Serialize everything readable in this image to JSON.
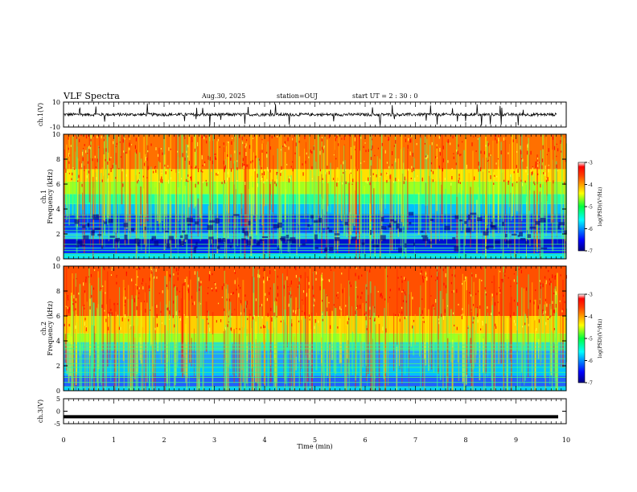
{
  "header": {
    "title": "VLF Spectra",
    "date": "Aug.30, 2025",
    "station": "station=OUJ",
    "start": "start  UT =   2  : 30 : 0"
  },
  "chart_data": [
    {
      "type": "line",
      "panel": "ch1-waveform",
      "ylabel": "ch.1(V)",
      "xlim": [
        0,
        10
      ],
      "ylim": [
        -10,
        10
      ],
      "yticks": [
        "10",
        "-10"
      ],
      "trace_color": "#000000",
      "baseline": 0,
      "noise_amplitude": 1.2,
      "spike_amplitude": 9
    },
    {
      "type": "heatmap",
      "panel": "ch1-spectrogram",
      "ylabel_channel": "ch.1",
      "ylabel": "Frequency (kHz)",
      "xlim": [
        0,
        10
      ],
      "ylim": [
        0,
        10
      ],
      "yticks": [
        "0",
        "2",
        "4",
        "6",
        "8",
        "10"
      ],
      "colorbar": {
        "label": "log(PSD)(V²/Hz)",
        "range": [
          -7,
          -3
        ],
        "ticks": [
          "-3",
          "-4",
          "-5",
          "-6",
          "-7"
        ]
      },
      "transition_khz": 5
    },
    {
      "type": "heatmap",
      "panel": "ch2-spectrogram",
      "ylabel_channel": "ch.2",
      "ylabel": "Frequency (kHz)",
      "xlim": [
        0,
        10
      ],
      "ylim": [
        0,
        10
      ],
      "yticks": [
        "0",
        "2",
        "4",
        "6",
        "8",
        "10"
      ],
      "colorbar": {
        "label": "log(PSD)(V²/Hz)",
        "range": [
          -7,
          -3
        ],
        "ticks": [
          "-3",
          "-4",
          "-5",
          "-6",
          "-7"
        ]
      },
      "transition_khz": 4
    },
    {
      "type": "line",
      "panel": "ch3-waveform",
      "ylabel": "ch.3(V)",
      "xlim": [
        0,
        10
      ],
      "ylim": [
        -5,
        5
      ],
      "yticks": [
        "5",
        "0",
        "-5"
      ],
      "trace_color": "#000000",
      "constant_value": -2.2
    }
  ],
  "xaxis": {
    "label": "Time  (min)",
    "ticks": [
      "0",
      "1",
      "2",
      "3",
      "4",
      "5",
      "6",
      "7",
      "8",
      "9",
      "10"
    ]
  }
}
